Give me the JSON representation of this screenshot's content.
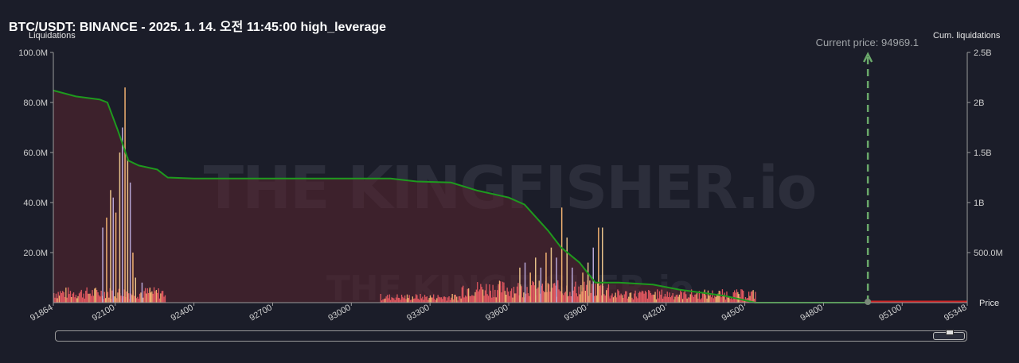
{
  "title": "BTC/USDT: BINANCE - 2025. 1. 14. 오전 11:45:00 high_leverage",
  "chart_data": {
    "type": "bar",
    "left_axis": {
      "label": "Liquidations",
      "ticks": [
        "100.0M",
        "80.0M",
        "60.0M",
        "40.0M",
        "20.0M"
      ],
      "tick_values": [
        100,
        80,
        60,
        40,
        20
      ],
      "ylim": [
        0,
        100
      ]
    },
    "right_axis": {
      "label": "Cum. liquidations",
      "ticks": [
        "2.5B",
        "2B",
        "1.5B",
        "1B",
        "500.0M"
      ],
      "tick_values": [
        2.5,
        2.0,
        1.5,
        1.0,
        0.5
      ],
      "ylim": [
        0,
        2.5
      ]
    },
    "x_axis": {
      "label": "Price",
      "ticks": [
        "91864",
        "92100",
        "92400",
        "92700",
        "93000",
        "93300",
        "93600",
        "93900",
        "94200",
        "94500",
        "94800",
        "95100",
        "95348"
      ],
      "tick_values": [
        91864,
        92100,
        92400,
        92700,
        93000,
        93300,
        93600,
        93900,
        94200,
        94500,
        94800,
        95100,
        95348
      ],
      "xlim": [
        91864,
        95348
      ]
    },
    "current_price": {
      "label": "Current price: 94969.1",
      "value": 94969.1
    },
    "cumulative_series": {
      "name": "Cum. liquidations",
      "color": "#1e9a1e",
      "points": [
        [
          91864,
          2.12
        ],
        [
          91950,
          2.06
        ],
        [
          92040,
          2.03
        ],
        [
          92070,
          2.0
        ],
        [
          92110,
          1.72
        ],
        [
          92150,
          1.42
        ],
        [
          92190,
          1.37
        ],
        [
          92260,
          1.33
        ],
        [
          92300,
          1.25
        ],
        [
          92400,
          1.24
        ],
        [
          92700,
          1.24
        ],
        [
          93000,
          1.24
        ],
        [
          93150,
          1.24
        ],
        [
          93250,
          1.21
        ],
        [
          93380,
          1.2
        ],
        [
          93480,
          1.12
        ],
        [
          93600,
          1.05
        ],
        [
          93660,
          0.98
        ],
        [
          93750,
          0.72
        ],
        [
          93800,
          0.55
        ],
        [
          93870,
          0.4
        ],
        [
          93930,
          0.2
        ],
        [
          94020,
          0.2
        ],
        [
          94150,
          0.18
        ],
        [
          94250,
          0.13
        ],
        [
          94420,
          0.07
        ],
        [
          94540,
          0.0
        ],
        [
          94969,
          0.0
        ]
      ]
    },
    "short_side": {
      "color": "#cc2222",
      "from": 94969.1,
      "to": 95348
    },
    "bar_clusters": [
      {
        "from": 91864,
        "to": 92290,
        "max_bar": 86,
        "avg_height": 3.5
      },
      {
        "from": 93110,
        "to": 93420,
        "max_bar": 3,
        "avg_height": 2
      },
      {
        "from": 93420,
        "to": 93980,
        "max_bar": 38,
        "avg_height": 5
      },
      {
        "from": 93980,
        "to": 94540,
        "max_bar": 5,
        "avg_height": 3
      }
    ],
    "tall_bars": [
      [
        92050,
        30
      ],
      [
        92065,
        34
      ],
      [
        92080,
        45
      ],
      [
        92090,
        42
      ],
      [
        92100,
        36
      ],
      [
        92115,
        60
      ],
      [
        92125,
        70
      ],
      [
        92135,
        86
      ],
      [
        92145,
        58
      ],
      [
        92155,
        48
      ],
      [
        92165,
        20
      ],
      [
        92175,
        10
      ],
      [
        92200,
        8
      ],
      [
        92230,
        6
      ],
      [
        93640,
        14
      ],
      [
        93660,
        16
      ],
      [
        93680,
        12
      ],
      [
        93700,
        18
      ],
      [
        93720,
        14
      ],
      [
        93740,
        20
      ],
      [
        93760,
        22
      ],
      [
        93780,
        18
      ],
      [
        93800,
        38
      ],
      [
        93820,
        26
      ],
      [
        93840,
        14
      ],
      [
        93880,
        12
      ],
      [
        93900,
        16
      ],
      [
        93920,
        22
      ],
      [
        93940,
        30
      ],
      [
        93955,
        30
      ]
    ],
    "colors": {
      "background": "#1b1d29",
      "area_fill": "#5a2430",
      "bars_red": "#e0575f",
      "bars_orange": "#f0b070",
      "bars_purple": "#b6a6d6",
      "current_price_line": "#6aa86a"
    },
    "watermark": "THE KINGFISHER.io"
  }
}
